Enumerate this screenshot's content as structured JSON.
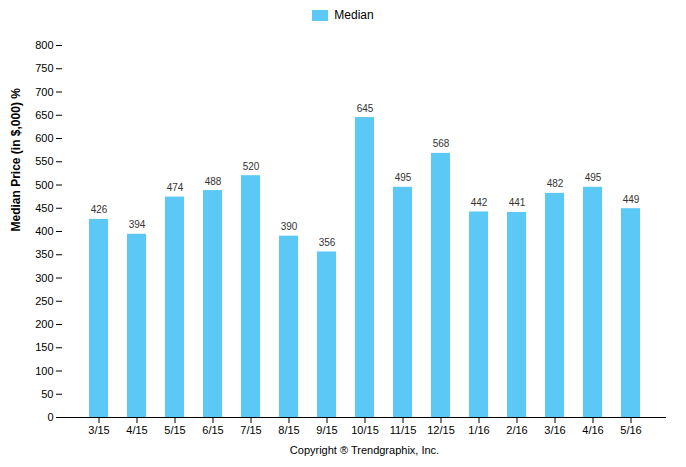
{
  "chart_data": {
    "type": "bar",
    "categories": [
      "3/15",
      "4/15",
      "5/15",
      "6/15",
      "7/15",
      "8/15",
      "9/15",
      "10/15",
      "11/15",
      "12/15",
      "1/16",
      "2/16",
      "3/16",
      "4/16",
      "5/16"
    ],
    "series": [
      {
        "name": "Median",
        "color": "#5BC8F5",
        "values": [
          426,
          394,
          474,
          488,
          520,
          390,
          356,
          645,
          495,
          568,
          442,
          441,
          482,
          495,
          449
        ]
      }
    ],
    "ylabel": "Median Price (in $,000) %",
    "xlabel": "Copyright ® Trendgraphix, Inc.",
    "ylim": [
      0,
      800
    ],
    "yticks": [
      0,
      50,
      100,
      150,
      200,
      250,
      300,
      350,
      400,
      450,
      500,
      550,
      600,
      650,
      700,
      750,
      800
    ],
    "legend": "top",
    "data_labels": true,
    "grid": false
  }
}
